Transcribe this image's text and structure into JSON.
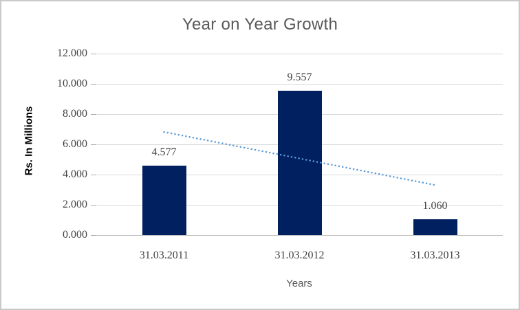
{
  "chart_data": {
    "type": "bar",
    "title": "Year on Year Growth",
    "xlabel": "Years",
    "ylabel": "Rs. In Millions",
    "categories": [
      "31.03.2011",
      "31.03.2012",
      "31.03.2013"
    ],
    "values": [
      4.577,
      9.557,
      1.06
    ],
    "data_labels": [
      "4.577",
      "9.557",
      "1.060"
    ],
    "y_ticks": [
      "0.000",
      "2.000",
      "4.000",
      "6.000",
      "8.000",
      "10.000",
      "12.000"
    ],
    "y_tick_values": [
      0,
      2,
      4,
      6,
      8,
      10,
      12
    ],
    "ylim": [
      0,
      12
    ],
    "grid": true,
    "legend": "none",
    "bar_color": "#002060",
    "trendline": {
      "type": "linear",
      "style": "dotted",
      "color": "#5b9bd5",
      "start_value": 6.82,
      "end_value": 3.31
    },
    "colors": {
      "title": "#595959",
      "tick_label": "#404040",
      "gridline": "#d9d9d9",
      "axis_line": "#c0c0c0",
      "tick_mark": "#ababab",
      "data_label": "#404040",
      "x_axis_title": "#595959",
      "y_axis_title": "#000000",
      "frame_border": "#c9c9c9"
    }
  }
}
